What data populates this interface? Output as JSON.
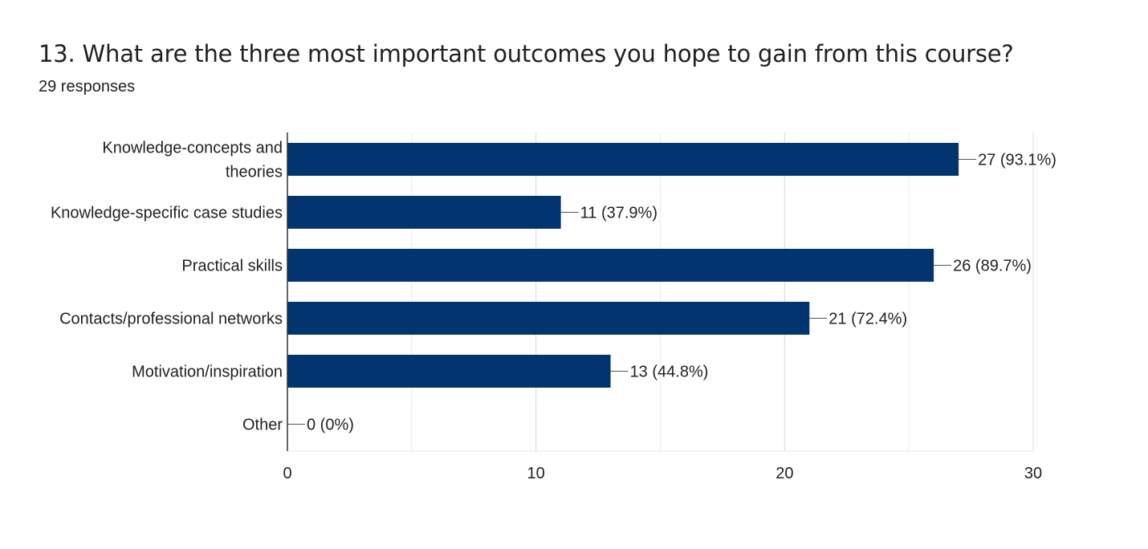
{
  "header": {
    "title": "13. What are the three most important outcomes you hope to gain from this course?",
    "responses": "29 responses"
  },
  "colors": {
    "bar": "#023570",
    "grid": "#ebebeb",
    "axis": "#333333",
    "text": "#222222"
  },
  "chart_data": {
    "type": "bar",
    "orientation": "horizontal",
    "categories": [
      [
        "Knowledge-concepts and",
        "theories"
      ],
      [
        "Knowledge-specific case studies"
      ],
      [
        "Practical skills"
      ],
      [
        "Contacts/professional networks"
      ],
      [
        "Motivation/inspiration"
      ],
      [
        "Other"
      ]
    ],
    "values": [
      27,
      11,
      26,
      21,
      13,
      0
    ],
    "data_labels": [
      "27 (93.1%)",
      "11 (37.9%)",
      "26 (89.7%)",
      "21 (72.4%)",
      "13 (44.8%)",
      "0 (0%)"
    ],
    "xlim": [
      0,
      30
    ],
    "xticks": [
      "0",
      "10",
      "20",
      "30"
    ],
    "xtick_values": [
      0,
      10,
      20,
      30
    ],
    "minor_grid": [
      5,
      15,
      25
    ],
    "grid": true
  }
}
